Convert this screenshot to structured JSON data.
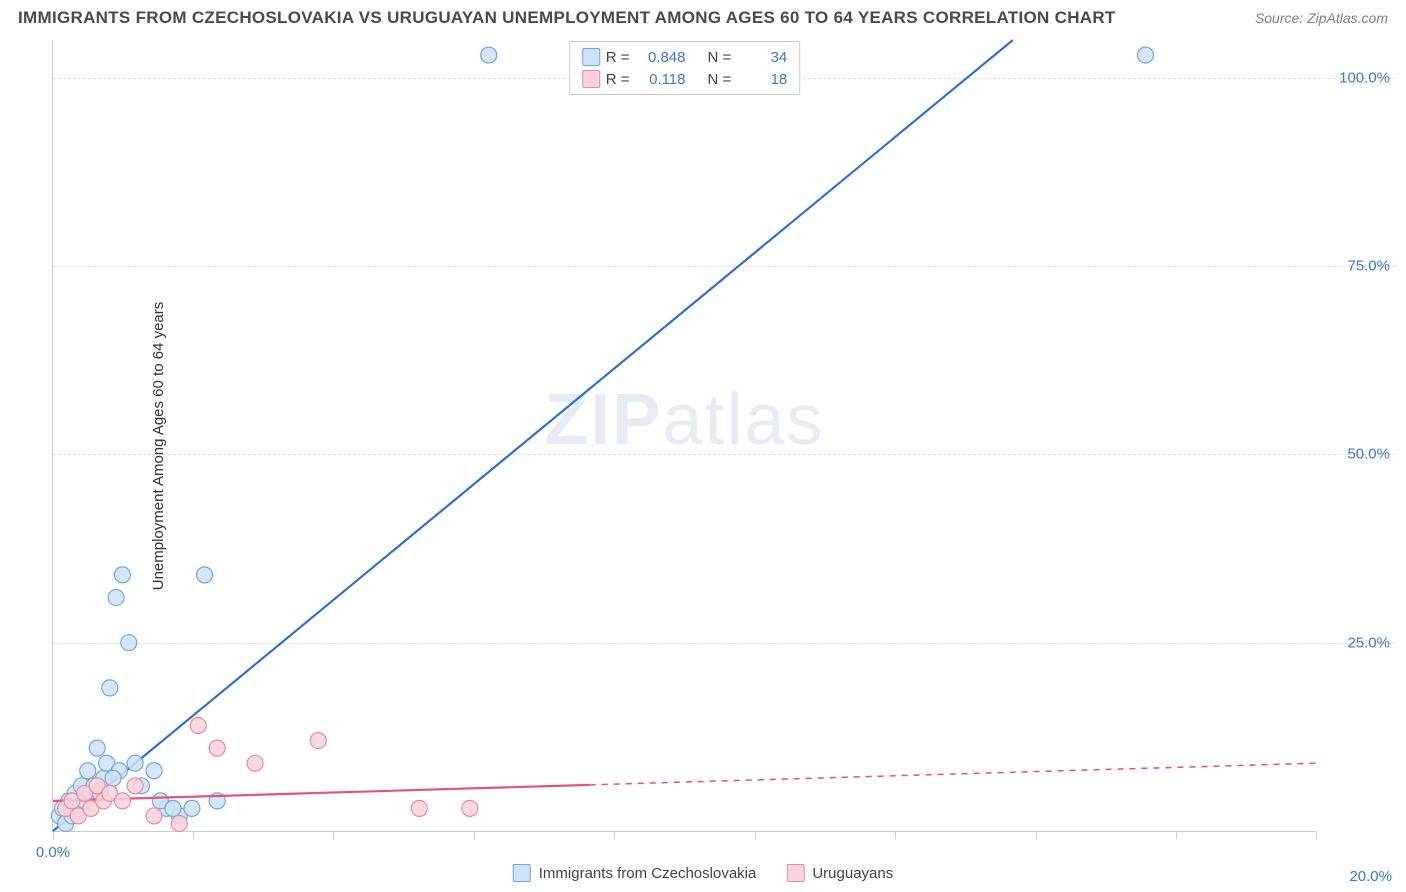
{
  "title": "IMMIGRANTS FROM CZECHOSLOVAKIA VS URUGUAYAN UNEMPLOYMENT AMONG AGES 60 TO 64 YEARS CORRELATION CHART",
  "source_label": "Source: ",
  "source_site": "ZipAtlas.com",
  "y_axis_label": "Unemployment Among Ages 60 to 64 years",
  "watermark_a": "ZIP",
  "watermark_b": "atlas",
  "chart": {
    "type": "scatter-with-regression",
    "xlim": [
      0,
      20
    ],
    "ylim": [
      0,
      105
    ],
    "x_ticks": [
      0,
      2.22,
      4.44,
      6.67,
      8.89,
      11.11,
      13.33,
      15.56,
      17.78,
      20
    ],
    "x_tick_labels": {
      "0": "0.0%",
      "20": "20.0%"
    },
    "y_ticks": [
      25,
      50,
      75,
      100
    ],
    "y_tick_labels": [
      "25.0%",
      "50.0%",
      "75.0%",
      "100.0%"
    ],
    "grid_color": "#e0e0e0",
    "axis_color": "#cccccc",
    "background_color": "#ffffff",
    "marker_radius": 8,
    "marker_stroke_width": 1.2,
    "line_width": 2.2,
    "series": [
      {
        "key": "czech",
        "name": "Immigrants from Czechoslovakia",
        "fill": "#cfe2f7",
        "stroke": "#6fa8e6",
        "line_color": "#2e6fd1",
        "R": "0.848",
        "N": "34",
        "trend": {
          "x1": 0,
          "y1": 0,
          "x2": 15.2,
          "y2": 105,
          "solid_end_x": 15.2
        },
        "points": [
          [
            0.1,
            2
          ],
          [
            0.15,
            3
          ],
          [
            0.2,
            1
          ],
          [
            0.25,
            4
          ],
          [
            0.3,
            2
          ],
          [
            0.35,
            5
          ],
          [
            0.4,
            3
          ],
          [
            0.45,
            6
          ],
          [
            0.5,
            4
          ],
          [
            0.55,
            8
          ],
          [
            0.6,
            5
          ],
          [
            0.7,
            11
          ],
          [
            0.8,
            7
          ],
          [
            0.9,
            19
          ],
          [
            1.0,
            31
          ],
          [
            1.1,
            34
          ],
          [
            1.2,
            25
          ],
          [
            1.3,
            9
          ],
          [
            1.6,
            8
          ],
          [
            1.8,
            3
          ],
          [
            2.0,
            2
          ],
          [
            2.2,
            3
          ],
          [
            2.4,
            34
          ],
          [
            2.6,
            4
          ],
          [
            0.65,
            6
          ],
          [
            0.75,
            5
          ],
          [
            0.85,
            9
          ],
          [
            1.05,
            8
          ],
          [
            1.4,
            6
          ],
          [
            1.7,
            4
          ],
          [
            1.9,
            3
          ],
          [
            6.9,
            103
          ],
          [
            17.3,
            103
          ],
          [
            0.95,
            7
          ]
        ]
      },
      {
        "key": "uruguay",
        "name": "Uruguayans",
        "fill": "#f9d2db",
        "stroke": "#e88ba2",
        "line_color": "#e5537a",
        "R": "0.118",
        "N": "18",
        "trend": {
          "x1": 0,
          "y1": 4,
          "x2": 20,
          "y2": 9,
          "solid_end_x": 8.5
        },
        "points": [
          [
            0.2,
            3
          ],
          [
            0.3,
            4
          ],
          [
            0.4,
            2
          ],
          [
            0.5,
            5
          ],
          [
            0.6,
            3
          ],
          [
            0.7,
            6
          ],
          [
            0.8,
            4
          ],
          [
            0.9,
            5
          ],
          [
            1.1,
            4
          ],
          [
            1.3,
            6
          ],
          [
            1.6,
            2
          ],
          [
            2.0,
            1
          ],
          [
            2.3,
            14
          ],
          [
            2.6,
            11
          ],
          [
            3.2,
            9
          ],
          [
            4.2,
            12
          ],
          [
            5.8,
            3
          ],
          [
            6.6,
            3
          ]
        ]
      }
    ]
  },
  "legend_top": {
    "r_label": "R =",
    "n_label": "N ="
  }
}
